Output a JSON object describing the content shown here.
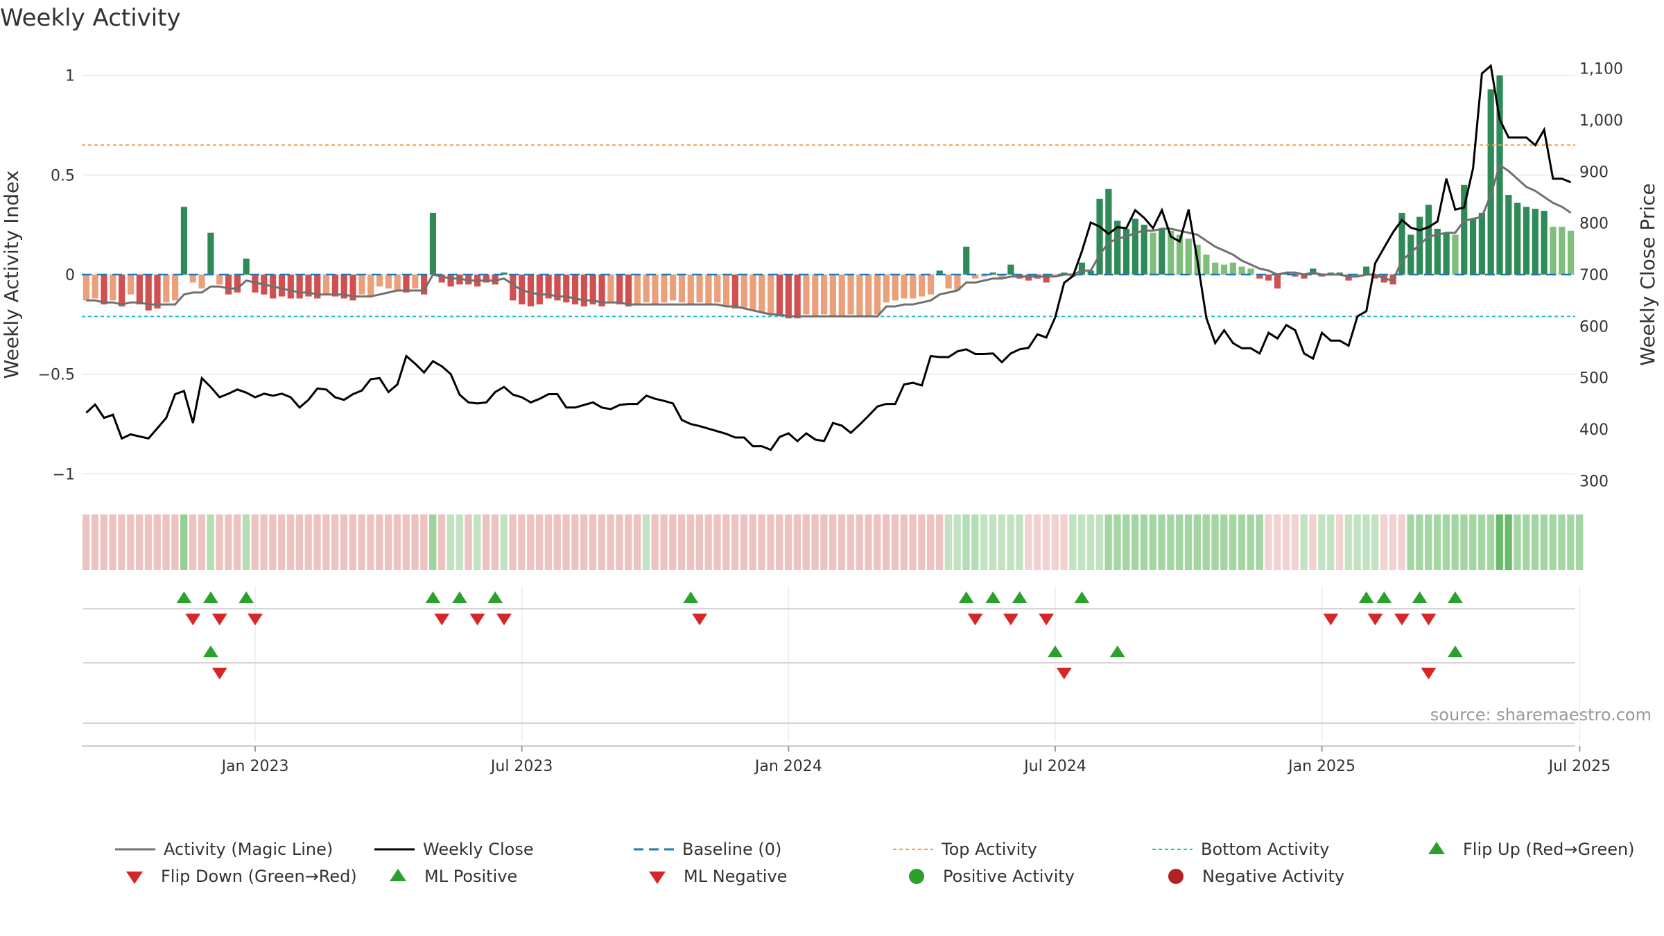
{
  "title": "Weekly Activity",
  "source": "source: sharemaestro.com",
  "colors": {
    "pos_strong": "#2e8b57",
    "pos_weak": "#7fbf7b",
    "neg_strong": "#d05050",
    "neg_weak": "#eba07c",
    "magic_line": "#707070",
    "close_line": "#000000",
    "baseline": "#1f77b4",
    "top_line": "#f0a050",
    "bottom_line": "#20c0d8",
    "flip_up": "#2ca02c",
    "flip_down": "#d62728"
  },
  "chart_data": {
    "type": "bar",
    "title": "Weekly Activity",
    "ylabel": "Weekly Activity Index",
    "y2label": "Weekly Close Price",
    "ylim": [
      -1.1,
      1.1
    ],
    "y2lim": [
      275,
      1125
    ],
    "yticks": [
      "1",
      "0.5",
      "0",
      "−0.5",
      "−1"
    ],
    "ytick_values": [
      1,
      0.5,
      0,
      -0.5,
      -1
    ],
    "y2ticks": [
      "1,100",
      "1,000",
      "900",
      "800",
      "700",
      "600",
      "500",
      "400",
      "300"
    ],
    "y2tick_values": [
      1100,
      1000,
      900,
      800,
      700,
      600,
      500,
      400,
      300
    ],
    "xticks": [
      "Jan 2023",
      "Jul 2023",
      "Jan 2024",
      "Jul 2024",
      "Jan 2025",
      "Jul 2025"
    ],
    "xtick_weeks": [
      19,
      49,
      79,
      109,
      139,
      168
    ],
    "top_activity": 0.65,
    "bottom_activity": -0.21,
    "baseline": 0,
    "activity": [
      -0.13,
      -0.12,
      -0.15,
      -0.13,
      -0.16,
      -0.1,
      -0.15,
      -0.18,
      -0.17,
      -0.14,
      -0.13,
      0.34,
      -0.04,
      -0.07,
      0.21,
      -0.05,
      -0.1,
      -0.09,
      0.08,
      -0.09,
      -0.1,
      -0.12,
      -0.11,
      -0.12,
      -0.12,
      -0.11,
      -0.12,
      -0.1,
      -0.11,
      -0.12,
      -0.13,
      -0.1,
      -0.11,
      -0.06,
      -0.07,
      -0.08,
      -0.09,
      -0.07,
      -0.1,
      0.31,
      -0.04,
      -0.06,
      -0.05,
      -0.05,
      -0.06,
      -0.04,
      -0.05,
      0.01,
      -0.13,
      -0.15,
      -0.16,
      -0.15,
      -0.12,
      -0.13,
      -0.14,
      -0.15,
      -0.16,
      -0.15,
      -0.16,
      -0.14,
      -0.15,
      -0.16,
      -0.15,
      -0.14,
      -0.15,
      -0.14,
      -0.13,
      -0.14,
      -0.15,
      -0.14,
      -0.15,
      -0.14,
      -0.16,
      -0.17,
      -0.17,
      -0.18,
      -0.19,
      -0.2,
      -0.21,
      -0.22,
      -0.22,
      -0.2,
      -0.21,
      -0.2,
      -0.21,
      -0.21,
      -0.2,
      -0.21,
      -0.21,
      -0.2,
      -0.14,
      -0.13,
      -0.12,
      -0.12,
      -0.11,
      -0.1,
      0.02,
      -0.07,
      -0.08,
      0.14,
      -0.02,
      -0.01,
      0.01,
      -0.02,
      0.05,
      -0.02,
      -0.03,
      -0.02,
      -0.04,
      -0.01,
      0.01,
      -0.01,
      0.06,
      0.02,
      0.38,
      0.43,
      0.27,
      0.23,
      0.28,
      0.25,
      0.21,
      0.23,
      0.22,
      0.2,
      0.18,
      0.15,
      0.1,
      0.06,
      0.05,
      0.06,
      0.04,
      0.03,
      -0.02,
      -0.03,
      -0.07,
      0.01,
      -0.01,
      -0.02,
      0.03,
      -0.01,
      0.01,
      0.01,
      -0.03,
      -0.01,
      0.04,
      -0.02,
      -0.04,
      -0.05,
      0.31,
      0.2,
      0.29,
      0.35,
      0.23,
      0.21,
      0.2,
      0.45,
      0.28,
      0.31,
      0.93,
      1.0,
      0.4,
      0.36,
      0.34,
      0.33,
      0.32,
      0.24,
      0.24,
      0.22
    ],
    "magic_line": [
      -0.13,
      -0.13,
      -0.14,
      -0.14,
      -0.15,
      -0.14,
      -0.14,
      -0.15,
      -0.15,
      -0.15,
      -0.15,
      -0.1,
      -0.09,
      -0.09,
      -0.06,
      -0.06,
      -0.07,
      -0.07,
      -0.03,
      -0.04,
      -0.05,
      -0.06,
      -0.07,
      -0.08,
      -0.09,
      -0.09,
      -0.1,
      -0.1,
      -0.1,
      -0.1,
      -0.11,
      -0.11,
      -0.11,
      -0.1,
      -0.09,
      -0.08,
      -0.08,
      -0.08,
      -0.08,
      0.0,
      -0.01,
      -0.02,
      -0.02,
      -0.03,
      -0.03,
      -0.03,
      -0.03,
      -0.02,
      -0.05,
      -0.08,
      -0.09,
      -0.1,
      -0.1,
      -0.11,
      -0.11,
      -0.12,
      -0.13,
      -0.13,
      -0.14,
      -0.14,
      -0.14,
      -0.15,
      -0.15,
      -0.15,
      -0.15,
      -0.15,
      -0.15,
      -0.15,
      -0.15,
      -0.15,
      -0.15,
      -0.15,
      -0.16,
      -0.16,
      -0.17,
      -0.18,
      -0.19,
      -0.2,
      -0.2,
      -0.21,
      -0.21,
      -0.21,
      -0.21,
      -0.21,
      -0.21,
      -0.21,
      -0.21,
      -0.21,
      -0.21,
      -0.21,
      -0.16,
      -0.16,
      -0.15,
      -0.15,
      -0.14,
      -0.13,
      -0.1,
      -0.09,
      -0.08,
      -0.04,
      -0.04,
      -0.03,
      -0.02,
      -0.02,
      -0.01,
      -0.01,
      -0.01,
      -0.01,
      -0.01,
      -0.01,
      0.0,
      0.0,
      0.02,
      0.02,
      0.1,
      0.16,
      0.18,
      0.19,
      0.21,
      0.22,
      0.22,
      0.23,
      0.23,
      0.22,
      0.21,
      0.2,
      0.17,
      0.14,
      0.12,
      0.1,
      0.07,
      0.05,
      0.03,
      0.02,
      0.0,
      0.01,
      0.01,
      0.0,
      0.01,
      0.0,
      0.0,
      0.0,
      -0.01,
      -0.01,
      0.0,
      0.0,
      -0.02,
      -0.03,
      0.07,
      0.11,
      0.15,
      0.19,
      0.2,
      0.21,
      0.21,
      0.27,
      0.28,
      0.29,
      0.4,
      0.55,
      0.52,
      0.48,
      0.44,
      0.42,
      0.39,
      0.36,
      0.34,
      0.31
    ],
    "close": [
      432,
      448,
      422,
      428,
      382,
      390,
      386,
      382,
      402,
      422,
      468,
      474,
      412,
      499,
      482,
      462,
      469,
      477,
      471,
      462,
      469,
      465,
      469,
      462,
      442,
      457,
      479,
      477,
      462,
      457,
      468,
      475,
      497,
      499,
      472,
      487,
      542,
      527,
      510,
      532,
      522,
      507,
      467,
      452,
      450,
      452,
      472,
      482,
      467,
      462,
      452,
      459,
      468,
      468,
      442,
      442,
      447,
      452,
      442,
      439,
      447,
      449,
      449,
      465,
      459,
      455,
      450,
      418,
      410,
      406,
      401,
      396,
      391,
      384,
      384,
      367,
      367,
      360,
      385,
      392,
      377,
      392,
      380,
      377,
      412,
      407,
      393,
      409,
      426,
      444,
      449,
      449,
      487,
      490,
      485,
      542,
      540,
      540,
      551,
      555,
      546,
      546,
      547,
      530,
      547,
      555,
      558,
      584,
      578,
      617,
      684,
      697,
      745,
      801,
      793,
      779,
      792,
      790,
      825,
      810,
      790,
      825,
      774,
      764,
      826,
      727,
      616,
      567,
      592,
      567,
      557,
      557,
      547,
      587,
      576,
      602,
      592,
      547,
      537,
      587,
      572,
      572,
      562,
      619,
      629,
      722,
      752,
      782,
      806,
      791,
      786,
      792,
      803,
      886,
      826,
      830,
      906,
      1090,
      1105,
      1001,
      966,
      966,
      966,
      951,
      981,
      886,
      886,
      879
    ],
    "bg_shade": [
      -0.3,
      -0.3,
      -0.3,
      -0.3,
      -0.3,
      -0.3,
      -0.3,
      -0.3,
      -0.3,
      -0.3,
      -0.3,
      0.5,
      -0.3,
      -0.3,
      0.3,
      -0.3,
      -0.3,
      -0.3,
      0.3,
      -0.3,
      -0.3,
      -0.3,
      -0.3,
      -0.3,
      -0.3,
      -0.3,
      -0.3,
      -0.3,
      -0.3,
      -0.3,
      -0.3,
      -0.3,
      -0.3,
      -0.3,
      -0.3,
      -0.3,
      -0.3,
      -0.3,
      -0.3,
      0.45,
      -0.3,
      0.2,
      0.2,
      -0.3,
      0.2,
      -0.3,
      -0.3,
      0.2,
      -0.3,
      -0.3,
      -0.3,
      -0.3,
      -0.3,
      -0.3,
      -0.3,
      -0.3,
      -0.3,
      -0.3,
      -0.3,
      -0.3,
      -0.3,
      -0.3,
      -0.3,
      0.2,
      -0.3,
      -0.3,
      -0.3,
      -0.3,
      -0.3,
      -0.3,
      -0.3,
      -0.3,
      -0.3,
      -0.3,
      -0.3,
      -0.3,
      -0.3,
      -0.3,
      -0.3,
      -0.3,
      -0.3,
      -0.3,
      -0.3,
      -0.3,
      -0.3,
      -0.3,
      -0.3,
      -0.3,
      -0.3,
      -0.3,
      -0.3,
      -0.3,
      -0.3,
      -0.3,
      -0.3,
      -0.3,
      -0.3,
      0.2,
      0.2,
      0.3,
      0.3,
      0.2,
      0.2,
      0.2,
      0.2,
      0.2,
      -0.2,
      -0.2,
      -0.2,
      -0.2,
      -0.2,
      0.2,
      0.2,
      0.2,
      0.2,
      0.4,
      0.4,
      0.4,
      0.4,
      0.4,
      0.4,
      0.4,
      0.4,
      0.4,
      0.4,
      0.4,
      0.4,
      0.4,
      0.4,
      0.4,
      0.4,
      0.4,
      0.4,
      -0.2,
      -0.2,
      -0.2,
      -0.2,
      0.2,
      -0.2,
      0.2,
      0.2,
      -0.2,
      0.2,
      0.2,
      0.2,
      0.2,
      -0.2,
      -0.2,
      -0.2,
      0.4,
      0.4,
      0.4,
      0.4,
      0.4,
      0.4,
      0.4,
      0.4,
      0.4,
      0.4,
      0.8,
      0.8,
      0.4,
      0.4,
      0.4,
      0.4,
      0.4,
      0.4,
      0.4,
      0.4
    ],
    "signals_row1_up": [
      11,
      14,
      18,
      39,
      42,
      46,
      68,
      99,
      102,
      105,
      112,
      144,
      146,
      150,
      154
    ],
    "signals_row1_down": [
      12,
      15,
      19,
      40,
      44,
      47,
      69,
      100,
      104,
      108,
      140,
      145,
      148,
      151
    ],
    "signals_row2_up": [
      14,
      109,
      116,
      154
    ],
    "signals_row2_down": [
      15,
      110,
      151
    ],
    "legend": [
      {
        "key": "magic",
        "label": "Activity (Magic Line)"
      },
      {
        "key": "close",
        "label": "Weekly Close"
      },
      {
        "key": "baseline",
        "label": "Baseline (0)"
      },
      {
        "key": "top",
        "label": "Top Activity"
      },
      {
        "key": "bottom",
        "label": "Bottom Activity"
      },
      {
        "key": "flipup",
        "label": "Flip Up (Red→Green)"
      },
      {
        "key": "flipdown",
        "label": "Flip Down (Green→Red)"
      },
      {
        "key": "mlpos",
        "label": "ML Positive"
      },
      {
        "key": "mlneg",
        "label": "ML Negative"
      },
      {
        "key": "posact",
        "label": "Positive Activity"
      },
      {
        "key": "negact",
        "label": "Negative Activity"
      }
    ]
  }
}
